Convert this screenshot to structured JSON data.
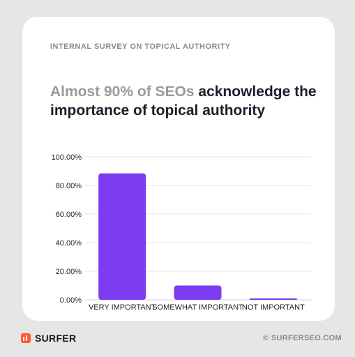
{
  "card": {
    "eyebrow": "INTERNAL SURVEY ON TOPICAL AUTHORITY",
    "headline_muted": "Almost 90% of SEOs",
    "headline_main": " acknowledge the importance of topical authority"
  },
  "footer": {
    "brand": "SURFER",
    "logo_icon": "surfer-logo-icon",
    "copyright": "© SURFERSEO.COM"
  },
  "colors": {
    "bar": "#7d3cf2",
    "grid": "#e4e4e4",
    "muted_text": "#9a9a9a",
    "dark_text": "#1c1c2b"
  },
  "chart_data": {
    "type": "bar",
    "categories": [
      "VERY IMPORTANT",
      "SOMEWHAT IMPORTANT",
      "NOT IMPORTANT"
    ],
    "values": [
      88.5,
      10.0,
      1.0
    ],
    "ylim": [
      0,
      100
    ],
    "yticks": [
      0,
      20,
      40,
      60,
      80,
      100
    ],
    "ytick_labels": [
      "0.00%",
      "20.00%",
      "40.00%",
      "60.00%",
      "80.00%",
      "100.00%"
    ],
    "grid": true,
    "legend": false
  }
}
